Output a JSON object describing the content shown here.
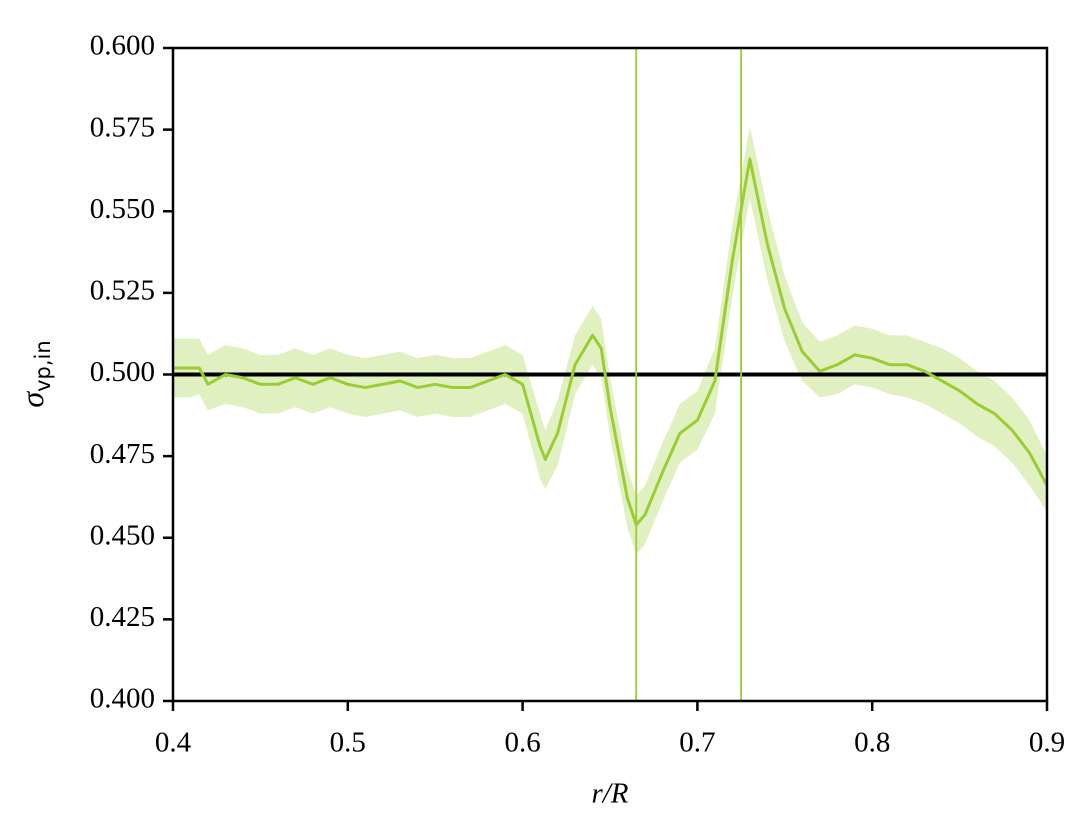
{
  "chart_data": {
    "type": "line",
    "xlabel": "r/R",
    "ylabel": "σ",
    "ylabel_sub": "vp,in",
    "x": [
      0.4,
      0.41,
      0.415,
      0.42,
      0.43,
      0.44,
      0.45,
      0.46,
      0.47,
      0.48,
      0.49,
      0.5,
      0.51,
      0.52,
      0.53,
      0.54,
      0.55,
      0.56,
      0.57,
      0.58,
      0.59,
      0.6,
      0.61,
      0.613,
      0.62,
      0.63,
      0.64,
      0.645,
      0.65,
      0.66,
      0.665,
      0.67,
      0.68,
      0.69,
      0.7,
      0.71,
      0.72,
      0.73,
      0.74,
      0.75,
      0.76,
      0.77,
      0.78,
      0.79,
      0.8,
      0.81,
      0.82,
      0.83,
      0.84,
      0.85,
      0.86,
      0.87,
      0.88,
      0.89,
      0.9
    ],
    "series": [
      {
        "color": "#9acd32",
        "values": [
          0.502,
          0.502,
          0.502,
          0.497,
          0.5,
          0.499,
          0.497,
          0.497,
          0.499,
          0.497,
          0.499,
          0.497,
          0.496,
          0.497,
          0.498,
          0.496,
          0.497,
          0.496,
          0.496,
          0.498,
          0.5,
          0.497,
          0.478,
          0.474,
          0.482,
          0.503,
          0.512,
          0.508,
          0.49,
          0.462,
          0.454,
          0.457,
          0.47,
          0.482,
          0.486,
          0.498,
          0.535,
          0.566,
          0.54,
          0.52,
          0.507,
          0.501,
          0.503,
          0.506,
          0.505,
          0.503,
          0.503,
          0.501,
          0.498,
          0.495,
          0.491,
          0.488,
          0.483,
          0.476,
          0.466
        ],
        "lower": [
          0.493,
          0.493,
          0.494,
          0.489,
          0.491,
          0.49,
          0.488,
          0.488,
          0.49,
          0.488,
          0.49,
          0.488,
          0.487,
          0.488,
          0.489,
          0.487,
          0.488,
          0.487,
          0.487,
          0.489,
          0.491,
          0.488,
          0.468,
          0.465,
          0.472,
          0.494,
          0.503,
          0.499,
          0.481,
          0.453,
          0.445,
          0.448,
          0.461,
          0.473,
          0.477,
          0.488,
          0.524,
          0.554,
          0.529,
          0.51,
          0.498,
          0.493,
          0.494,
          0.497,
          0.496,
          0.494,
          0.493,
          0.491,
          0.488,
          0.485,
          0.481,
          0.478,
          0.473,
          0.466,
          0.458
        ],
        "upper": [
          0.511,
          0.511,
          0.511,
          0.506,
          0.509,
          0.508,
          0.506,
          0.506,
          0.508,
          0.506,
          0.508,
          0.506,
          0.505,
          0.506,
          0.507,
          0.505,
          0.506,
          0.505,
          0.505,
          0.507,
          0.509,
          0.506,
          0.488,
          0.483,
          0.492,
          0.512,
          0.521,
          0.517,
          0.499,
          0.471,
          0.463,
          0.466,
          0.479,
          0.491,
          0.495,
          0.508,
          0.546,
          0.576,
          0.551,
          0.53,
          0.516,
          0.51,
          0.512,
          0.515,
          0.514,
          0.512,
          0.512,
          0.51,
          0.508,
          0.505,
          0.501,
          0.498,
          0.493,
          0.486,
          0.475
        ]
      }
    ],
    "hlines": [
      {
        "value": 0.5,
        "color": "#000000"
      }
    ],
    "vlines": [
      {
        "value": 0.665,
        "color": "#9acd32"
      },
      {
        "value": 0.725,
        "color": "#9acd32"
      }
    ],
    "xlim": [
      0.4,
      0.9
    ],
    "xticks": [
      0.4,
      0.5,
      0.6,
      0.7,
      0.8,
      0.9
    ],
    "ylim": [
      0.4,
      0.6
    ],
    "yticks": [
      {
        "value": 0.4,
        "label": "0.400"
      },
      {
        "value": 0.425,
        "label": "0.425"
      },
      {
        "value": 0.45,
        "label": "0.450"
      },
      {
        "value": 0.475,
        "label": "0.475"
      },
      {
        "value": 0.5,
        "label": "0.500"
      },
      {
        "value": 0.525,
        "label": "0.525"
      },
      {
        "value": 0.55,
        "label": "0.550"
      },
      {
        "value": 0.575,
        "label": "0.575"
      },
      {
        "value": 0.6,
        "label": "0.600"
      }
    ],
    "grid": false
  }
}
